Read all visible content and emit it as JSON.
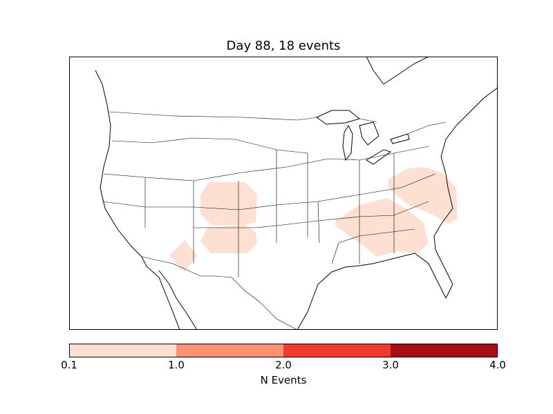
{
  "title": "Day 88, 18 events",
  "map": {
    "region": "North America",
    "projection": "Lambert conformal conic",
    "event_fill_color": "#fee0d2",
    "event_areas": [
      {
        "name": "colorado-kansas"
      },
      {
        "name": "new-mexico-oklahoma"
      },
      {
        "name": "arizona"
      },
      {
        "name": "southeast-us"
      },
      {
        "name": "virginia-carolinas"
      }
    ]
  },
  "colorbar": {
    "label": "N Events",
    "ticks": [
      "0.1",
      "1.0",
      "2.0",
      "3.0",
      "4.0"
    ],
    "bins": [
      {
        "from": 0.1,
        "to": 1.0,
        "color": "#fee0d2"
      },
      {
        "from": 1.0,
        "to": 2.0,
        "color": "#fc9272"
      },
      {
        "from": 2.0,
        "to": 3.0,
        "color": "#ef3b2c"
      },
      {
        "from": 3.0,
        "to": 4.0,
        "color": "#a50f15"
      }
    ]
  }
}
